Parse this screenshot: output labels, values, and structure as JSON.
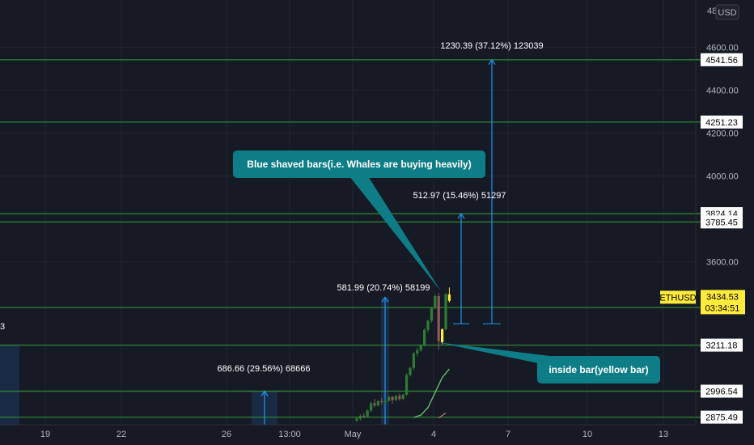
{
  "chart_data": {
    "type": "candlestick",
    "currency_badge": "USD",
    "y_axis_top_partial": "48",
    "y_ticks": [
      "4600.00",
      "4400.00",
      "4200.00",
      "4000.00",
      "3600.00"
    ],
    "y_tick_values": [
      4600,
      4400,
      4200,
      4000,
      3600
    ],
    "x_ticks": [
      "19",
      "22",
      "26",
      "13:00",
      "May",
      "4",
      "7",
      "10",
      "13"
    ],
    "ylim": [
      2840,
      4820
    ],
    "levels": [
      {
        "label": "4541.56",
        "value": 4541.56
      },
      {
        "label": "4251.23",
        "value": 4251.23
      },
      {
        "label": "3824.14",
        "value": 3824.14
      },
      {
        "label": "3785.45",
        "value": 3785.45
      },
      {
        "label": "3386.69",
        "value": 3386.69
      },
      {
        "label": "3211.18",
        "value": 3211.18
      },
      {
        "label": "2996.54",
        "value": 2996.54
      },
      {
        "label": "2875.49",
        "value": 2875.49
      }
    ],
    "price_tag": {
      "symbol": "ETHUSD",
      "price": "3434.53",
      "countdown": "03:34:51",
      "value": 3434.53
    },
    "left_cut_label": "3",
    "measure_labels": [
      {
        "text": "1230.39 (37.12%) 123039"
      },
      {
        "text": "512.97 (15.46%) 51297"
      },
      {
        "text": "581.99 (20.74%) 58199"
      },
      {
        "text": "686.66 (29.56%) 68666"
      }
    ],
    "callouts": [
      {
        "text": "Blue shaved bars(i.e. Whales are buying heavily)"
      },
      {
        "text": "inside bar(yellow bar)"
      }
    ],
    "candles": [
      {
        "o": 2860,
        "h": 2872,
        "c": 2869,
        "l": 2852
      },
      {
        "o": 2868,
        "h": 2888,
        "c": 2882,
        "l": 2860
      },
      {
        "o": 2882,
        "h": 2895,
        "c": 2878,
        "l": 2870
      },
      {
        "o": 2878,
        "h": 2912,
        "c": 2906,
        "l": 2872
      },
      {
        "o": 2906,
        "h": 2948,
        "c": 2940,
        "l": 2898
      },
      {
        "o": 2940,
        "h": 2960,
        "c": 2930,
        "l": 2922
      },
      {
        "o": 2930,
        "h": 2955,
        "c": 2950,
        "l": 2925
      },
      {
        "o": 2950,
        "h": 2965,
        "c": 2945,
        "l": 2935
      },
      {
        "o": 2945,
        "h": 2958,
        "c": 2952,
        "l": 2940
      },
      {
        "o": 2952,
        "h": 2975,
        "c": 2970,
        "l": 2948
      },
      {
        "o": 2970,
        "h": 2975,
        "c": 2955,
        "l": 2940
      },
      {
        "o": 2955,
        "h": 2980,
        "c": 2975,
        "l": 2950
      },
      {
        "o": 2975,
        "h": 2985,
        "c": 2960,
        "l": 2952
      },
      {
        "o": 2960,
        "h": 2985,
        "c": 2980,
        "l": 2955
      },
      {
        "o": 2980,
        "h": 3080,
        "c": 3072,
        "l": 2975
      },
      {
        "o": 3072,
        "h": 3110,
        "c": 3105,
        "l": 3065
      },
      {
        "o": 3105,
        "h": 3180,
        "c": 3172,
        "l": 3095
      },
      {
        "o": 3172,
        "h": 3200,
        "c": 3188,
        "l": 3160
      },
      {
        "o": 3188,
        "h": 3215,
        "c": 3210,
        "l": 3180
      },
      {
        "o": 3210,
        "h": 3290,
        "c": 3282,
        "l": 3205
      },
      {
        "o": 3282,
        "h": 3330,
        "c": 3325,
        "l": 3270
      },
      {
        "o": 3325,
        "h": 3390,
        "c": 3385,
        "l": 3315
      },
      {
        "o": 3385,
        "h": 3448,
        "c": 3440,
        "l": 3378
      },
      {
        "o": 3440,
        "h": 3455,
        "c": 3230,
        "l": 3190
      },
      {
        "o": 3225,
        "h": 3290,
        "c": 3285,
        "l": 3215
      },
      {
        "o": 3285,
        "h": 3455,
        "c": 3448,
        "l": 3280
      },
      {
        "o": 3448,
        "h": 3480,
        "c": 3418,
        "l": 3410
      }
    ],
    "ma_line": [
      [
        16,
        2874
      ],
      [
        18,
        2885
      ],
      [
        20,
        2920
      ],
      [
        22,
        2990
      ],
      [
        24,
        3060
      ],
      [
        26,
        3100
      ]
    ],
    "ma_line2": [
      [
        23,
        2872
      ],
      [
        25,
        2895
      ]
    ],
    "colors": {
      "background": "#161a25",
      "grid": "#222633",
      "level_line": "#2e7d32",
      "level_tag": "#ffffff",
      "measure": "#2196f3",
      "callout": "#0f7d87",
      "up_candle": "#2e7d32",
      "down_candle": "#8d5a5a",
      "inside_bar": "#ffeb3b",
      "ma": "#66bb6a",
      "ma2": "#b26a6a",
      "price_tag": "#ffeb3b"
    }
  }
}
